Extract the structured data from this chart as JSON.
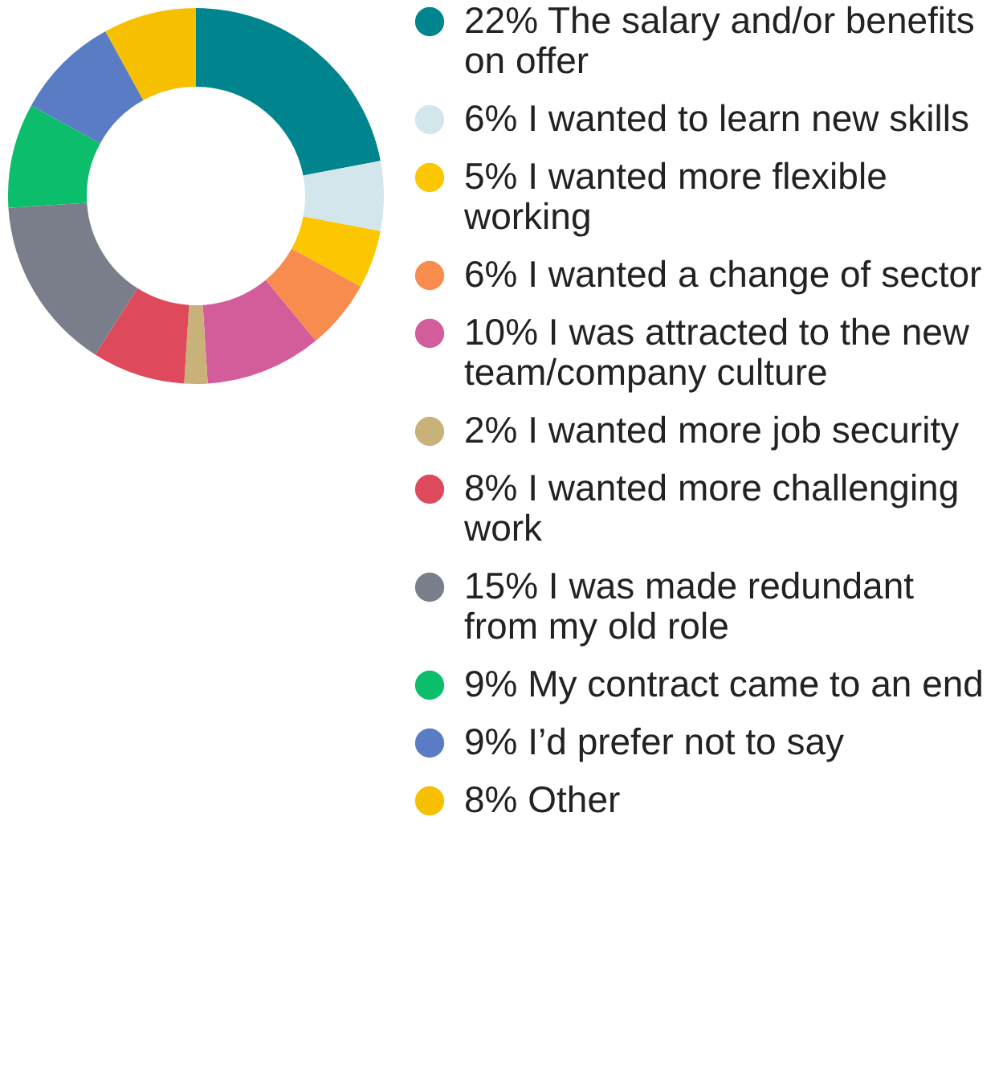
{
  "chart_data": {
    "type": "donut",
    "categories": [
      "The salary and/or benefits on offer",
      "I wanted to learn new skills",
      "I wanted more flexible working",
      "I wanted a change of sector",
      "I was attracted to the new team/company culture",
      "I wanted more job security",
      "I wanted more challenging work",
      "I was made redundant from my old role",
      "My contract came to an end",
      "I’d prefer not to say",
      "Other"
    ],
    "values": [
      22,
      6,
      5,
      6,
      10,
      2,
      8,
      15,
      9,
      9,
      8
    ],
    "value_labels": [
      "22%",
      "6%",
      "5%",
      "6%",
      "10%",
      "2%",
      "8%",
      "15%",
      "9%",
      "9%",
      "8%"
    ],
    "colors": [
      "#00858f",
      "#d3e6ec",
      "#fcc600",
      "#f88c4f",
      "#d35c9b",
      "#c9b27a",
      "#de4a5b",
      "#7a7e8a",
      "#0cbd6b",
      "#5a7cc4",
      "#f6bf00"
    ],
    "legend": "right"
  }
}
